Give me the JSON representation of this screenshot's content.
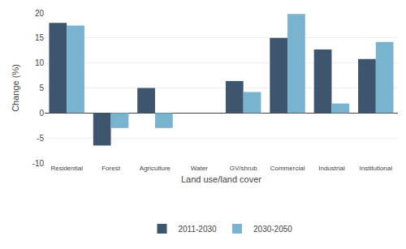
{
  "chart_data": {
    "type": "bar",
    "xlabel": "Land use/land cover",
    "ylabel": "Change (%)",
    "categories": [
      "Residential",
      "Forest",
      "Agriculture",
      "Water",
      "GV/shrub",
      "Commercial",
      "Industrial",
      "Institutional"
    ],
    "series": [
      {
        "name": "2011-2030",
        "color": "#3d566e",
        "values": [
          18.0,
          -6.5,
          5.0,
          0.0,
          6.4,
          15.0,
          12.7,
          10.8
        ]
      },
      {
        "name": "2030-2050",
        "color": "#7ab3d0",
        "values": [
          17.5,
          -3.0,
          -3.0,
          0.0,
          4.2,
          19.8,
          1.9,
          14.2
        ]
      }
    ],
    "ylim": [
      -10.0,
      20.0
    ],
    "yticks": [
      -10.0,
      -5.0,
      0.0,
      5.0,
      10.0,
      15.0,
      20.0
    ],
    "grid": true,
    "legend": "bottom"
  }
}
